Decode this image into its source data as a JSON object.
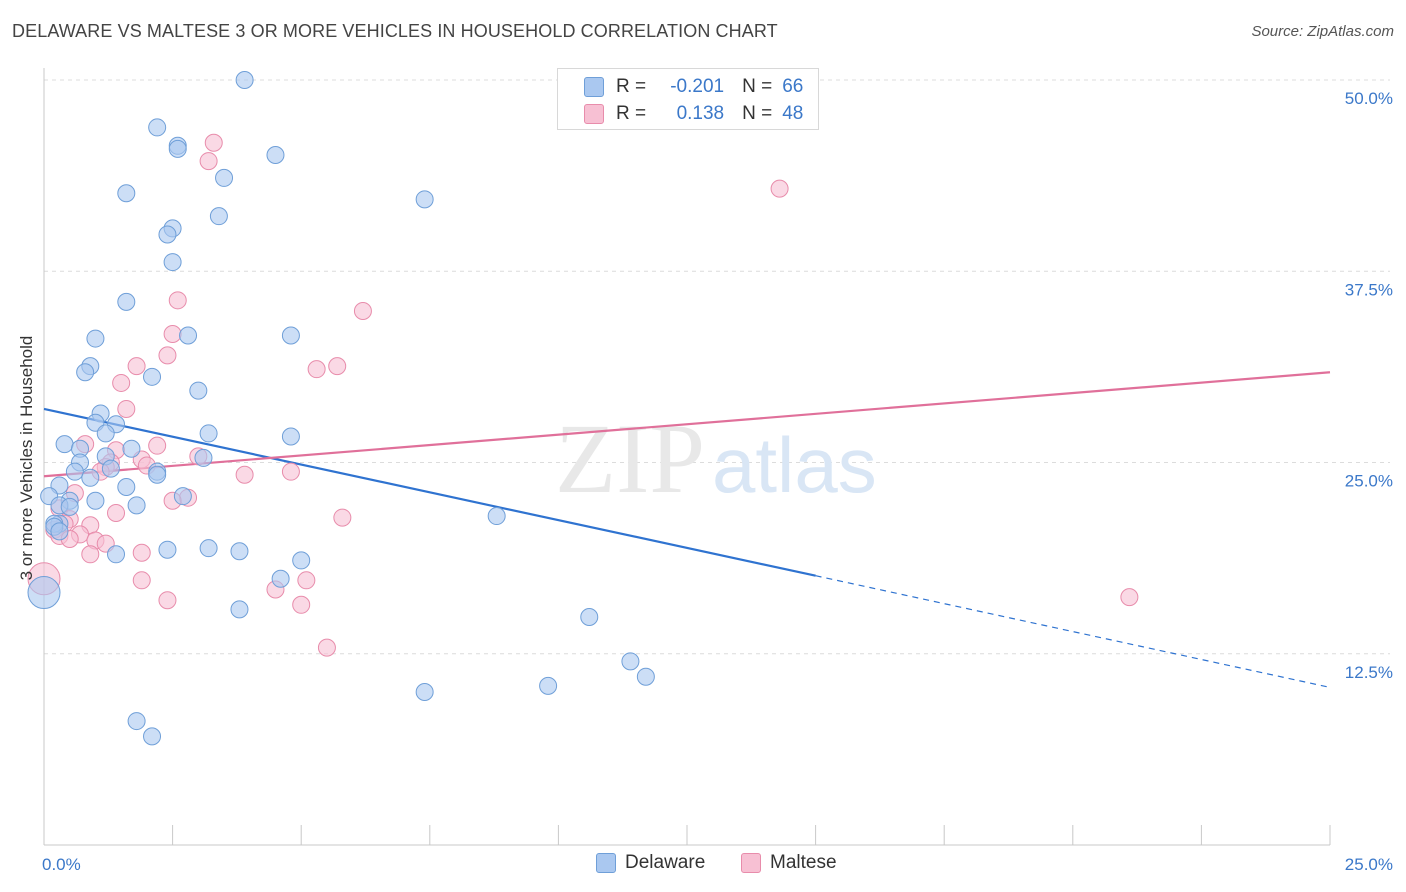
{
  "title": "DELAWARE VS MALTESE 3 OR MORE VEHICLES IN HOUSEHOLD CORRELATION CHART",
  "source": "Source: ZipAtlas.com",
  "watermark": {
    "zip": "ZIP",
    "atlas": "atlas"
  },
  "colors": {
    "delaware_fill": "#aac8f0",
    "delaware_stroke": "#6f9fd8",
    "delaware_line": "#2f73d0",
    "maltese_fill": "#f7c0d3",
    "maltese_stroke": "#e88cab",
    "maltese_line": "#e0709a",
    "axis_text": "#3b78c9",
    "grid": "#dcdcdc"
  },
  "stats": {
    "rows": [
      {
        "r_label": "R =",
        "r_value": "-0.201",
        "n_label": "N =",
        "n_value": "66",
        "series": "delaware"
      },
      {
        "r_label": "R =",
        "r_value": "0.138",
        "n_label": "N =",
        "n_value": "48",
        "series": "maltese"
      }
    ]
  },
  "legend": {
    "items": [
      {
        "label": "Delaware"
      },
      {
        "label": "Maltese"
      }
    ]
  },
  "chart_data": {
    "type": "scatter",
    "title": "DELAWARE VS MALTESE 3 OR MORE VEHICLES IN HOUSEHOLD CORRELATION CHART",
    "xlabel": "",
    "ylabel": "3 or more Vehicles in Household",
    "xlim": [
      0,
      25
    ],
    "ylim": [
      0,
      50
    ],
    "x_tick_labels": [
      "0.0%",
      "25.0%"
    ],
    "y_ticks": [
      12.5,
      25.0,
      37.5,
      50.0
    ],
    "y_tick_labels": [
      "12.5%",
      "25.0%",
      "37.5%",
      "50.0%"
    ],
    "grid": true,
    "legend_position": "bottom-center",
    "series": [
      {
        "name": "Delaware",
        "points": [
          [
            3.9,
            50.0
          ],
          [
            2.2,
            46.9
          ],
          [
            2.6,
            45.7
          ],
          [
            2.6,
            45.5
          ],
          [
            4.5,
            45.1
          ],
          [
            3.5,
            43.6
          ],
          [
            1.6,
            42.6
          ],
          [
            7.4,
            42.2
          ],
          [
            3.4,
            41.1
          ],
          [
            2.5,
            40.3
          ],
          [
            2.4,
            39.9
          ],
          [
            2.5,
            38.1
          ],
          [
            1.6,
            35.5
          ],
          [
            4.8,
            33.3
          ],
          [
            2.8,
            33.3
          ],
          [
            1.0,
            33.1
          ],
          [
            0.9,
            31.3
          ],
          [
            0.8,
            30.9
          ],
          [
            2.1,
            30.6
          ],
          [
            3.0,
            29.7
          ],
          [
            1.1,
            28.2
          ],
          [
            1.0,
            27.6
          ],
          [
            1.4,
            27.5
          ],
          [
            1.2,
            26.9
          ],
          [
            3.2,
            26.9
          ],
          [
            4.8,
            26.7
          ],
          [
            0.4,
            26.2
          ],
          [
            0.7,
            25.9
          ],
          [
            1.7,
            25.9
          ],
          [
            3.1,
            25.3
          ],
          [
            1.2,
            25.4
          ],
          [
            0.7,
            25.0
          ],
          [
            1.3,
            24.6
          ],
          [
            0.6,
            24.4
          ],
          [
            2.2,
            24.4
          ],
          [
            2.2,
            24.2
          ],
          [
            0.9,
            24.0
          ],
          [
            0.3,
            23.5
          ],
          [
            1.6,
            23.4
          ],
          [
            2.7,
            22.8
          ],
          [
            0.1,
            22.8
          ],
          [
            0.5,
            22.5
          ],
          [
            1.0,
            22.5
          ],
          [
            0.3,
            22.2
          ],
          [
            0.5,
            22.1
          ],
          [
            1.8,
            22.2
          ],
          [
            0.3,
            21.0
          ],
          [
            0.2,
            21.0
          ],
          [
            8.8,
            21.5
          ],
          [
            0.2,
            20.8
          ],
          [
            0.3,
            20.5
          ],
          [
            3.2,
            19.4
          ],
          [
            3.8,
            19.2
          ],
          [
            2.4,
            19.3
          ],
          [
            1.4,
            19.0
          ],
          [
            5.0,
            18.6
          ],
          [
            4.6,
            17.4
          ],
          [
            0.0,
            16.5
          ],
          [
            3.8,
            15.4
          ],
          [
            10.6,
            14.9
          ],
          [
            11.4,
            12.0
          ],
          [
            11.7,
            11.0
          ],
          [
            7.4,
            10.0
          ],
          [
            9.8,
            10.4
          ],
          [
            1.8,
            8.1
          ],
          [
            2.1,
            7.1
          ]
        ]
      },
      {
        "name": "Maltese",
        "points": [
          [
            3.3,
            45.9
          ],
          [
            3.2,
            44.7
          ],
          [
            14.3,
            42.9
          ],
          [
            2.6,
            35.6
          ],
          [
            6.2,
            34.9
          ],
          [
            2.5,
            33.4
          ],
          [
            2.4,
            32.0
          ],
          [
            1.8,
            31.3
          ],
          [
            5.7,
            31.3
          ],
          [
            5.3,
            31.1
          ],
          [
            1.5,
            30.2
          ],
          [
            1.6,
            28.5
          ],
          [
            0.8,
            26.2
          ],
          [
            2.2,
            26.1
          ],
          [
            1.4,
            25.8
          ],
          [
            3.0,
            25.4
          ],
          [
            1.9,
            25.2
          ],
          [
            1.3,
            25.0
          ],
          [
            1.2,
            24.7
          ],
          [
            2.0,
            24.8
          ],
          [
            1.1,
            24.4
          ],
          [
            4.8,
            24.4
          ],
          [
            3.9,
            24.2
          ],
          [
            0.6,
            23.0
          ],
          [
            2.8,
            22.7
          ],
          [
            2.5,
            22.5
          ],
          [
            0.3,
            22.0
          ],
          [
            1.4,
            21.7
          ],
          [
            5.8,
            21.4
          ],
          [
            0.5,
            21.3
          ],
          [
            0.4,
            21.0
          ],
          [
            0.9,
            20.9
          ],
          [
            0.2,
            20.6
          ],
          [
            0.3,
            20.2
          ],
          [
            0.7,
            20.3
          ],
          [
            0.5,
            20.0
          ],
          [
            1.0,
            19.9
          ],
          [
            1.2,
            19.7
          ],
          [
            1.9,
            19.1
          ],
          [
            0.9,
            19.0
          ],
          [
            0.0,
            17.4
          ],
          [
            1.9,
            17.3
          ],
          [
            5.1,
            17.3
          ],
          [
            4.5,
            16.7
          ],
          [
            21.1,
            16.2
          ],
          [
            2.4,
            16.0
          ],
          [
            5.0,
            15.7
          ],
          [
            5.5,
            12.9
          ]
        ]
      }
    ],
    "trend_lines": [
      {
        "series": "Delaware",
        "x": [
          0,
          15.0
        ],
        "y": [
          28.5,
          17.6
        ],
        "dashed_extension_to_x": 25,
        "dashed_extension_y": 10.3
      },
      {
        "series": "Maltese",
        "x": [
          0,
          25
        ],
        "y": [
          24.1,
          30.9
        ]
      }
    ]
  }
}
